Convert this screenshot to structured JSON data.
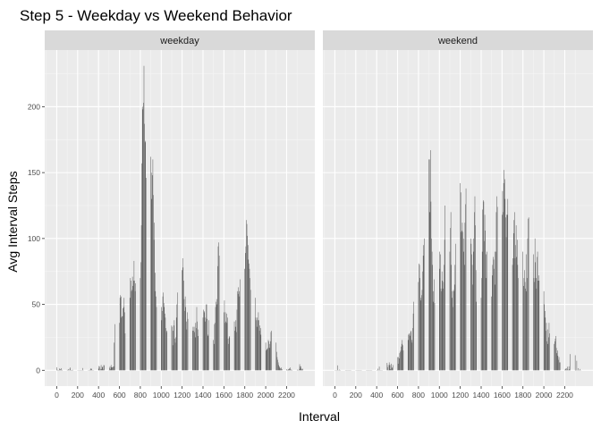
{
  "chart_data": {
    "type": "bar",
    "title": "Step 5 - Weekday vs Weekend Behavior",
    "xlabel": "Interval",
    "ylabel": "Avg Interval Steps",
    "xlim": [
      -115,
      2470
    ],
    "ylim": [
      -12,
      243
    ],
    "x_ticks": [
      0,
      200,
      400,
      600,
      800,
      1000,
      1200,
      1400,
      1600,
      1800,
      2000,
      2200
    ],
    "y_ticks": [
      0,
      50,
      100,
      150,
      200
    ],
    "grid": true,
    "bar_color": "#595959",
    "panel_background": "#ebebeb",
    "strip_background": "#d9d9d9",
    "panels": [
      {
        "label": "weekday",
        "x": [
          0,
          5,
          10,
          15,
          20,
          25,
          30,
          35,
          40,
          45,
          50,
          55,
          100,
          105,
          110,
          115,
          120,
          125,
          130,
          135,
          140,
          145,
          150,
          155,
          200,
          205,
          210,
          215,
          220,
          225,
          230,
          235,
          240,
          245,
          250,
          255,
          300,
          305,
          310,
          315,
          320,
          325,
          330,
          335,
          340,
          345,
          350,
          355,
          400,
          405,
          410,
          415,
          420,
          425,
          430,
          435,
          440,
          445,
          450,
          455,
          500,
          505,
          510,
          515,
          520,
          525,
          530,
          535,
          540,
          545,
          550,
          555,
          600,
          605,
          610,
          615,
          620,
          625,
          630,
          635,
          640,
          645,
          650,
          655,
          700,
          705,
          710,
          715,
          720,
          725,
          730,
          735,
          740,
          745,
          750,
          755,
          800,
          805,
          810,
          815,
          820,
          825,
          830,
          835,
          840,
          845,
          850,
          855,
          900,
          905,
          910,
          915,
          920,
          925,
          930,
          935,
          940,
          945,
          950,
          955,
          1000,
          1005,
          1010,
          1015,
          1020,
          1025,
          1030,
          1035,
          1040,
          1045,
          1050,
          1055,
          1100,
          1105,
          1110,
          1115,
          1120,
          1125,
          1130,
          1135,
          1140,
          1145,
          1150,
          1155,
          1200,
          1205,
          1210,
          1215,
          1220,
          1225,
          1230,
          1235,
          1240,
          1245,
          1250,
          1255,
          1300,
          1305,
          1310,
          1315,
          1320,
          1325,
          1330,
          1335,
          1340,
          1345,
          1350,
          1355,
          1400,
          1405,
          1410,
          1415,
          1420,
          1425,
          1430,
          1435,
          1440,
          1445,
          1450,
          1455,
          1500,
          1505,
          1510,
          1515,
          1520,
          1525,
          1530,
          1535,
          1540,
          1545,
          1550,
          1555,
          1600,
          1605,
          1610,
          1615,
          1620,
          1625,
          1630,
          1635,
          1640,
          1645,
          1650,
          1655,
          1700,
          1705,
          1710,
          1715,
          1720,
          1725,
          1730,
          1735,
          1740,
          1745,
          1750,
          1755,
          1800,
          1805,
          1810,
          1815,
          1820,
          1825,
          1830,
          1835,
          1840,
          1845,
          1850,
          1855,
          1900,
          1905,
          1910,
          1915,
          1920,
          1925,
          1930,
          1935,
          1940,
          1945,
          1950,
          1955,
          2000,
          2005,
          2010,
          2015,
          2020,
          2025,
          2030,
          2035,
          2040,
          2045,
          2050,
          2055,
          2100,
          2105,
          2110,
          2115,
          2120,
          2125,
          2130,
          2135,
          2140,
          2145,
          2150,
          2155,
          2200,
          2205,
          2210,
          2215,
          2220,
          2225,
          2230,
          2235,
          2240,
          2245,
          2250,
          2255,
          2300,
          2305,
          2310,
          2315,
          2320,
          2325,
          2330,
          2335,
          2340,
          2345,
          2350,
          2355
        ],
        "values": [
          2.3,
          0.5,
          0.2,
          0.2,
          0,
          1.4,
          0.5,
          0.9,
          0,
          1.6,
          0.3,
          0.1,
          0.4,
          0,
          0.9,
          0,
          0,
          1.2,
          2.1,
          0.2,
          0,
          0.2,
          0.3,
          0.3,
          0,
          0,
          0,
          0,
          0,
          0,
          0,
          0,
          0,
          0,
          1.7,
          0,
          0,
          0,
          0,
          0.4,
          0,
          1.4,
          0.8,
          1.2,
          0,
          0,
          0,
          0.1,
          1.2,
          3.2,
          2.8,
          0,
          1,
          4,
          0.9,
          2.3,
          2.8,
          0.6,
          4,
          3.7,
          0,
          1.9,
          3,
          1,
          4,
          2.3,
          2.3,
          2.1,
          2.7,
          2.9,
          21,
          35,
          36,
          55,
          57,
          56,
          40,
          41,
          41,
          47,
          48,
          55,
          44,
          28,
          55,
          70,
          68,
          60,
          61,
          71,
          64,
          68,
          83,
          68,
          60,
          66,
          70,
          82,
          110,
          157,
          200,
          198,
          203,
          231,
          187,
          173,
          174,
          146,
          162,
          150,
          130,
          148,
          160,
          133,
          99,
          112,
          74,
          60,
          56,
          48,
          48,
          38,
          45,
          56,
          59,
          51,
          48,
          43,
          40,
          32,
          29,
          30,
          34,
          33,
          19,
          30,
          34,
          38,
          24,
          21,
          25,
          40,
          50,
          59,
          76,
          85,
          78,
          68,
          54,
          45,
          56,
          48,
          37,
          31,
          44,
          39,
          30,
          33,
          30,
          33,
          29,
          25,
          36,
          32,
          48,
          37,
          31,
          26,
          40,
          46,
          45,
          44,
          37,
          40,
          50,
          50,
          39,
          27,
          26,
          38,
          23,
          20,
          35,
          36,
          48,
          52,
          54,
          50,
          79,
          94,
          97,
          87,
          44,
          53,
          36,
          44,
          37,
          43,
          36,
          40,
          24,
          20,
          25,
          26,
          37,
          30,
          33,
          38,
          29,
          46,
          60,
          58,
          63,
          60,
          56,
          69,
          77,
          89,
          94,
          114,
          111,
          102,
          95,
          84,
          81,
          77,
          70,
          61,
          55,
          40,
          38,
          33,
          40,
          38,
          44,
          38,
          30,
          34,
          32,
          27,
          21,
          15,
          16,
          16,
          17,
          23,
          22,
          20,
          17,
          22,
          29,
          30,
          21,
          14,
          10,
          8,
          6,
          4,
          3,
          2,
          1.5,
          1.2,
          2.1,
          0.9,
          0.8,
          0.3,
          0.3,
          0.5,
          0.7,
          1.4,
          1,
          2.1,
          0.7,
          0,
          0.1,
          0.3,
          0,
          0.5,
          0,
          0,
          1,
          4.6,
          3,
          3,
          1.4,
          0.5,
          0.7,
          1.2
        ]
      },
      {
        "label": "weekend",
        "x": [
          0,
          5,
          10,
          15,
          20,
          25,
          30,
          35,
          40,
          45,
          50,
          55,
          100,
          105,
          110,
          115,
          120,
          125,
          130,
          135,
          140,
          145,
          150,
          155,
          200,
          205,
          210,
          215,
          220,
          225,
          230,
          235,
          240,
          245,
          250,
          255,
          300,
          305,
          310,
          315,
          320,
          325,
          330,
          335,
          340,
          345,
          350,
          355,
          400,
          405,
          410,
          415,
          420,
          425,
          430,
          435,
          440,
          445,
          450,
          455,
          500,
          505,
          510,
          515,
          520,
          525,
          530,
          535,
          540,
          545,
          550,
          555,
          600,
          605,
          610,
          615,
          620,
          625,
          630,
          635,
          640,
          645,
          650,
          655,
          700,
          705,
          710,
          715,
          720,
          725,
          730,
          735,
          740,
          745,
          750,
          755,
          800,
          805,
          810,
          815,
          820,
          825,
          830,
          835,
          840,
          845,
          850,
          855,
          900,
          905,
          910,
          915,
          920,
          925,
          930,
          935,
          940,
          945,
          950,
          955,
          1000,
          1005,
          1010,
          1015,
          1020,
          1025,
          1030,
          1035,
          1040,
          1045,
          1050,
          1055,
          1100,
          1105,
          1110,
          1115,
          1120,
          1125,
          1130,
          1135,
          1140,
          1145,
          1150,
          1155,
          1200,
          1205,
          1210,
          1215,
          1220,
          1225,
          1230,
          1235,
          1240,
          1245,
          1250,
          1255,
          1300,
          1305,
          1310,
          1315,
          1320,
          1325,
          1330,
          1335,
          1340,
          1345,
          1350,
          1355,
          1400,
          1405,
          1410,
          1415,
          1420,
          1425,
          1430,
          1435,
          1440,
          1445,
          1450,
          1455,
          1500,
          1505,
          1510,
          1515,
          1520,
          1525,
          1530,
          1535,
          1540,
          1545,
          1550,
          1555,
          1600,
          1605,
          1610,
          1615,
          1620,
          1625,
          1630,
          1635,
          1640,
          1645,
          1650,
          1655,
          1700,
          1705,
          1710,
          1715,
          1720,
          1725,
          1730,
          1735,
          1740,
          1745,
          1750,
          1755,
          1800,
          1805,
          1810,
          1815,
          1820,
          1825,
          1830,
          1835,
          1840,
          1845,
          1850,
          1855,
          1900,
          1905,
          1910,
          1915,
          1920,
          1925,
          1930,
          1935,
          1940,
          1945,
          1950,
          1955,
          2000,
          2005,
          2010,
          2015,
          2020,
          2025,
          2030,
          2035,
          2040,
          2045,
          2050,
          2055,
          2100,
          2105,
          2110,
          2115,
          2120,
          2125,
          2130,
          2135,
          2140,
          2145,
          2150,
          2155,
          2200,
          2205,
          2210,
          2215,
          2220,
          2225,
          2230,
          2235,
          2240,
          2245,
          2250,
          2255,
          2300,
          2305,
          2310,
          2315,
          2320,
          2325,
          2330,
          2335,
          2340,
          2345,
          2350,
          2355
        ],
        "values": [
          0,
          0,
          0,
          0,
          0,
          3.7,
          0,
          0,
          0,
          0.5,
          0,
          0,
          0,
          0,
          0,
          0,
          0,
          0,
          0,
          0,
          0,
          0,
          0,
          0,
          0,
          0,
          0,
          0,
          0,
          0,
          0,
          0,
          0,
          0,
          0,
          0,
          0,
          0,
          0,
          0,
          0,
          0,
          0,
          0,
          0,
          0,
          0,
          0,
          0,
          0,
          1.2,
          0,
          0,
          2.8,
          0,
          0,
          0,
          0,
          0,
          0,
          5.6,
          2.3,
          4,
          0,
          6,
          4,
          0.9,
          4,
          5,
          1.6,
          2.3,
          4,
          10,
          5,
          10,
          9,
          13,
          14,
          15,
          18,
          20,
          23,
          19,
          15,
          23,
          27,
          28,
          27,
          26,
          29,
          30,
          23,
          21,
          32,
          43,
          52,
          67,
          81,
          80,
          70,
          53,
          55,
          57,
          61,
          75,
          87,
          95,
          100,
          160,
          160,
          120,
          167,
          128,
          100,
          90,
          80,
          60,
          52,
          69,
          51,
          90,
          77,
          88,
          62,
          60,
          75,
          68,
          62,
          67,
          80,
          99,
          125,
          90,
          108,
          120,
          80,
          55,
          60,
          48,
          61,
          60,
          65,
          80,
          96,
          142,
          135,
          105,
          106,
          112,
          105,
          100,
          90,
          80,
          112,
          126,
          138,
          100,
          96,
          88,
          80,
          65,
          100,
          90,
          120,
          132,
          110,
          76,
          52,
          55,
          70,
          90,
          122,
          129,
          128,
          98,
          118,
          106,
          88,
          70,
          90,
          56,
          72,
          80,
          86,
          84,
          77,
          90,
          65,
          90,
          120,
          132,
          124,
          118,
          136,
          120,
          142,
          152,
          145,
          130,
          116,
          101,
          118,
          118,
          130,
          80,
          85,
          104,
          114,
          120,
          85,
          95,
          110,
          86,
          99,
          80,
          70,
          90,
          64,
          70,
          76,
          67,
          62,
          88,
          60,
          70,
          100,
          115,
          116,
          88,
          70,
          67,
          100,
          82,
          70,
          62,
          86,
          90,
          68,
          72,
          68,
          60,
          50,
          45,
          40,
          30,
          36,
          22,
          31,
          20,
          25,
          36,
          28,
          20,
          22,
          24,
          26,
          17,
          13,
          15,
          11,
          8,
          10,
          6,
          6,
          0,
          1,
          1.2,
          1.5,
          0,
          2.7,
          0.6,
          0,
          3,
          0.7,
          12.3,
          0,
          11.4,
          0.2,
          0,
          7.2,
          0,
          0,
          1.6,
          0,
          0,
          1,
          0,
          0
        ]
      }
    ]
  }
}
